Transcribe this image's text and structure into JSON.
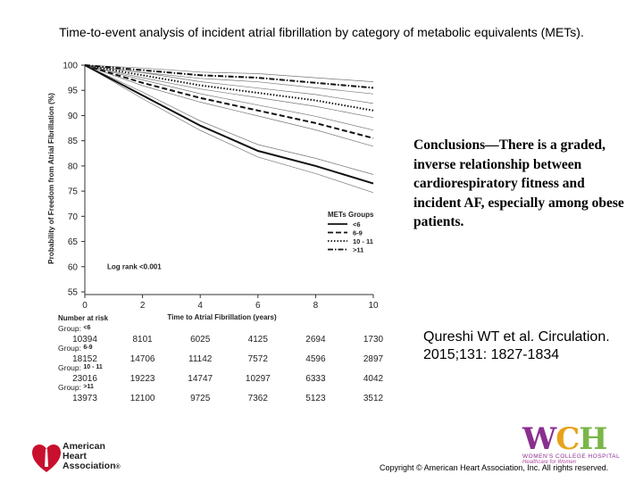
{
  "slide": {
    "title": "Time-to-event analysis of incident atrial fibrillation by category of metabolic equivalents (METs).",
    "conclusions": "Conclusions—There is a graded, inverse relationship between cardiorespiratory fitness and incident AF, especially among obese patients.",
    "citation": "Qureshi WT et al. Circulation. 2015;131: 1827-1834",
    "copyright": "Copyright © American Heart Association, Inc. All rights reserved.",
    "aha_logo_lines": [
      "American",
      "Heart",
      "Association"
    ],
    "aha_registered": "®",
    "wch_logo": {
      "w": "W",
      "c": "C",
      "h": "H",
      "subtitle": "WOMEN'S COLLEGE HOSPITAL",
      "tagline": "Healthcare for Women"
    }
  },
  "chart_data": {
    "type": "line",
    "title": "",
    "xlabel": "Time to Atrial Fibrillation (years)",
    "ylabel": "Probability of Freedom from Atrial Fibrillation (%)",
    "xlim": [
      0,
      10
    ],
    "ylim": [
      55,
      100
    ],
    "x_ticks": [
      0,
      2,
      4,
      6,
      8,
      10
    ],
    "y_ticks": [
      55,
      60,
      65,
      70,
      75,
      80,
      85,
      90,
      95,
      100
    ],
    "legend_title": "METs Groups",
    "legend_position": "bottom-right",
    "annotation": "Log rank <0.001",
    "series": [
      {
        "name": "<6",
        "dash": "solid",
        "x": [
          0,
          2,
          4,
          6,
          8,
          10
        ],
        "y": [
          100,
          94,
          88,
          83,
          80,
          76.5
        ]
      },
      {
        "name": "6-9",
        "dash": "dashed",
        "x": [
          0,
          2,
          4,
          6,
          8,
          10
        ],
        "y": [
          100,
          96.5,
          93.5,
          91,
          88.5,
          85.5
        ]
      },
      {
        "name": "10 - 11",
        "dash": "dotted",
        "x": [
          0,
          2,
          4,
          6,
          8,
          10
        ],
        "y": [
          100,
          98,
          96,
          94.5,
          93,
          91
        ]
      },
      {
        "name": ">11",
        "dash": "dashdot",
        "x": [
          0,
          2,
          4,
          6,
          8,
          10
        ],
        "y": [
          100,
          99,
          98,
          97.5,
          96.5,
          95.5
        ]
      }
    ],
    "risk_table": {
      "header": "Number at risk",
      "group_prefix": "Group:",
      "rows": [
        {
          "group": "<6",
          "values": [
            "10394",
            "8101",
            "6025",
            "4125",
            "2694",
            "1730"
          ]
        },
        {
          "group": "6-9",
          "values": [
            "18152",
            "14706",
            "11142",
            "7572",
            "4596",
            "2897"
          ]
        },
        {
          "group": "10 - 11",
          "values": [
            "23016",
            "19223",
            "14747",
            "10297",
            "6333",
            "4042"
          ]
        },
        {
          "group": ">11",
          "values": [
            "13973",
            "12100",
            "9725",
            "7362",
            "5123",
            "3512"
          ]
        }
      ]
    }
  }
}
